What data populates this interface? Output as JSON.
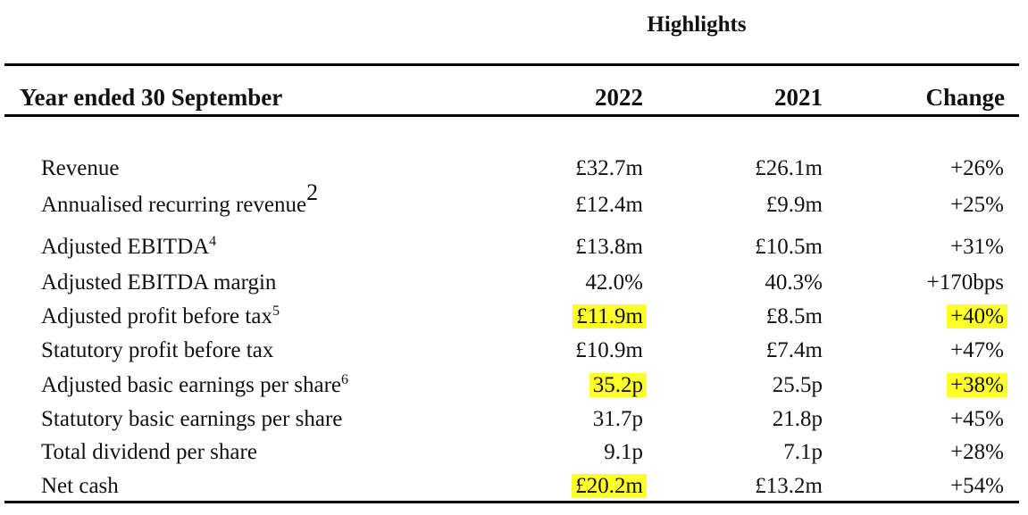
{
  "title": "Highlights",
  "header": {
    "label": "Year ended 30 September",
    "col1": "2022",
    "col2": "2021",
    "col3": "Change"
  },
  "rows": [
    {
      "label": "Revenue",
      "sup": "",
      "v2022": "£32.7m",
      "v2021": "£26.1m",
      "change": "+26%",
      "hl2022": false,
      "hlchange": false
    },
    {
      "label": "Annualised recurring revenue",
      "sup": "2",
      "v2022": "£12.4m",
      "v2021": "£9.9m",
      "change": "+25%",
      "hl2022": false,
      "hlchange": false
    },
    {
      "label": "Adjusted EBITDA",
      "sup": "4",
      "v2022": "£13.8m",
      "v2021": "£10.5m",
      "change": "+31%",
      "hl2022": false,
      "hlchange": false
    },
    {
      "label": "Adjusted EBITDA margin",
      "sup": "",
      "v2022": "42.0%",
      "v2021": "40.3%",
      "change": "+170bps",
      "hl2022": false,
      "hlchange": false
    },
    {
      "label": "Adjusted profit before tax",
      "sup": "5",
      "v2022": "£11.9m",
      "v2021": "£8.5m",
      "change": "+40%",
      "hl2022": true,
      "hlchange": true
    },
    {
      "label": "Statutory profit before tax",
      "sup": "",
      "v2022": "£10.9m",
      "v2021": "£7.4m",
      "change": "+47%",
      "hl2022": false,
      "hlchange": false
    },
    {
      "label": "Adjusted basic earnings per share",
      "sup": "6",
      "v2022": "35.2p",
      "v2021": "25.5p",
      "change": "+38%",
      "hl2022": true,
      "hlchange": true
    },
    {
      "label": "Statutory basic earnings per share",
      "sup": "",
      "v2022": "31.7p",
      "v2021": "21.8p",
      "change": "+45%",
      "hl2022": false,
      "hlchange": false
    },
    {
      "label": "Total dividend per share",
      "sup": "",
      "v2022": "9.1p",
      "v2021": "7.1p",
      "change": "+28%",
      "hl2022": false,
      "hlchange": false
    },
    {
      "label": "Net cash",
      "sup": "",
      "v2022": "£20.2m",
      "v2021": "£13.2m",
      "change": "+54%",
      "hl2022": true,
      "hlchange": false
    }
  ],
  "highlight_color": "#ffff2a"
}
